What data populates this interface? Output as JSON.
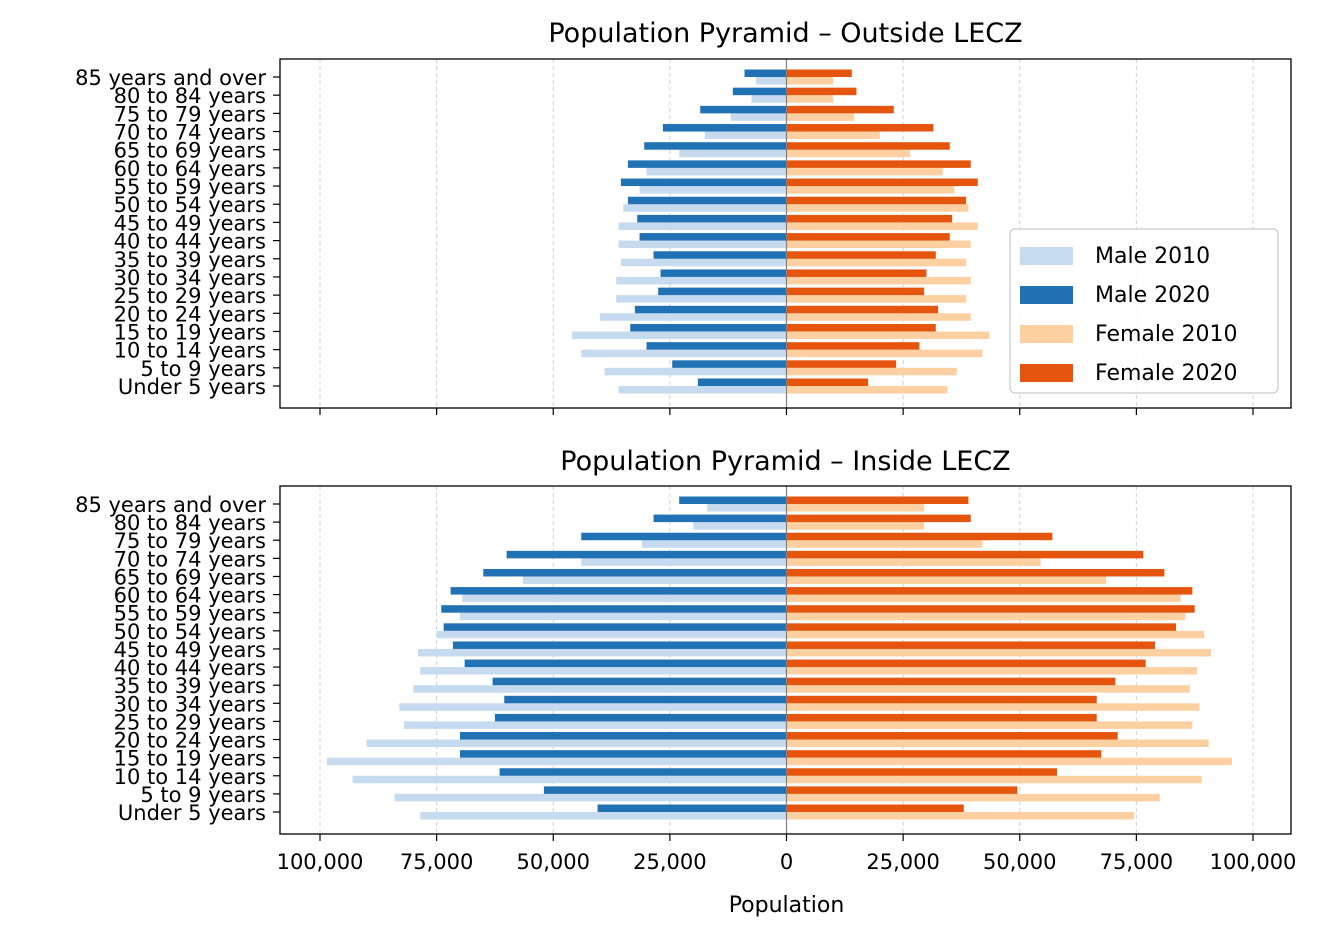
{
  "chart_data": [
    {
      "type": "bar",
      "orientation": "horizontal-pyramid",
      "title": "Population Pyramid – Outside LECZ",
      "categories": [
        "Under 5 years",
        "5 to 9 years",
        "10 to 14 years",
        "15 to 19 years",
        "20 to 24 years",
        "25 to 29 years",
        "30 to 34 years",
        "35 to 39 years",
        "40 to 44 years",
        "45 to 49 years",
        "50 to 54 years",
        "55 to 59 years",
        "60 to 64 years",
        "65 to 69 years",
        "70 to 74 years",
        "75 to 79 years",
        "80 to 84 years",
        "85 years and over"
      ],
      "series": [
        {
          "name": "Male 2010",
          "color": "#c6dbef",
          "values": [
            -36000,
            -39000,
            -44000,
            -46000,
            -40000,
            -36500,
            -36500,
            -35500,
            -36000,
            -36000,
            -35000,
            -31500,
            -30000,
            -23000,
            -17500,
            -12000,
            -7500,
            -6500
          ]
        },
        {
          "name": "Male 2020",
          "color": "#2171b5",
          "values": [
            -19000,
            -24500,
            -30000,
            -33500,
            -32500,
            -27500,
            -27000,
            -28500,
            -31500,
            -32000,
            -34000,
            -35500,
            -34000,
            -30500,
            -26500,
            -18500,
            -11500,
            -9000
          ]
        },
        {
          "name": "Female 2010",
          "color": "#fdd0a2",
          "values": [
            34500,
            36500,
            42000,
            43500,
            39500,
            38500,
            39500,
            38500,
            39500,
            41000,
            39000,
            36000,
            33500,
            26500,
            20000,
            14500,
            10000,
            10000
          ]
        },
        {
          "name": "Female 2020",
          "color": "#e6550d",
          "values": [
            17500,
            23500,
            28500,
            32000,
            32500,
            29500,
            30000,
            32000,
            35000,
            35500,
            38500,
            41000,
            39500,
            35000,
            31500,
            23000,
            15000,
            14000
          ]
        }
      ],
      "xlim": [
        -100000,
        100000
      ],
      "xticks": [
        -100000,
        -75000,
        -50000,
        -25000,
        0,
        25000,
        50000,
        75000,
        100000
      ],
      "grid": "vertical dashed",
      "legend": "lower-right"
    },
    {
      "type": "bar",
      "orientation": "horizontal-pyramid",
      "title": "Population Pyramid – Inside LECZ",
      "xlabel": "Population",
      "categories": [
        "Under 5 years",
        "5 to 9 years",
        "10 to 14 years",
        "15 to 19 years",
        "20 to 24 years",
        "25 to 29 years",
        "30 to 34 years",
        "35 to 39 years",
        "40 to 44 years",
        "45 to 49 years",
        "50 to 54 years",
        "55 to 59 years",
        "60 to 64 years",
        "65 to 69 years",
        "70 to 74 years",
        "75 to 79 years",
        "80 to 84 years",
        "85 years and over"
      ],
      "series": [
        {
          "name": "Male 2010",
          "color": "#c6dbef",
          "values": [
            -78500,
            -84000,
            -93000,
            -98500,
            -90000,
            -82000,
            -83000,
            -80000,
            -78500,
            -79000,
            -75000,
            -70000,
            -69500,
            -56500,
            -44000,
            -31000,
            -20000,
            -17000
          ]
        },
        {
          "name": "Male 2020",
          "color": "#2171b5",
          "values": [
            -40500,
            -52000,
            -61500,
            -70000,
            -70000,
            -62500,
            -60500,
            -63000,
            -69000,
            -71500,
            -73500,
            -74000,
            -72000,
            -65000,
            -60000,
            -44000,
            -28500,
            -23000
          ]
        },
        {
          "name": "Female 2010",
          "color": "#fdd0a2",
          "values": [
            74500,
            80000,
            89000,
            95500,
            90500,
            87000,
            88500,
            86500,
            88000,
            91000,
            89500,
            85500,
            84500,
            68500,
            54500,
            42000,
            29500,
            29500
          ]
        },
        {
          "name": "Female 2020",
          "color": "#e6550d",
          "values": [
            38000,
            49500,
            58000,
            67500,
            71000,
            66500,
            66500,
            70500,
            77000,
            79000,
            83500,
            87500,
            87000,
            81000,
            76500,
            57000,
            39500,
            39000
          ]
        }
      ],
      "xlim": [
        -100000,
        100000
      ],
      "xticks": [
        -100000,
        -75000,
        -50000,
        -25000,
        0,
        25000,
        50000,
        75000,
        100000
      ],
      "xticklabels": [
        "100,000",
        "75,000",
        "50,000",
        "25,000",
        "0",
        "25,000",
        "50,000",
        "75,000",
        "100,000"
      ],
      "grid": "vertical dashed"
    }
  ]
}
